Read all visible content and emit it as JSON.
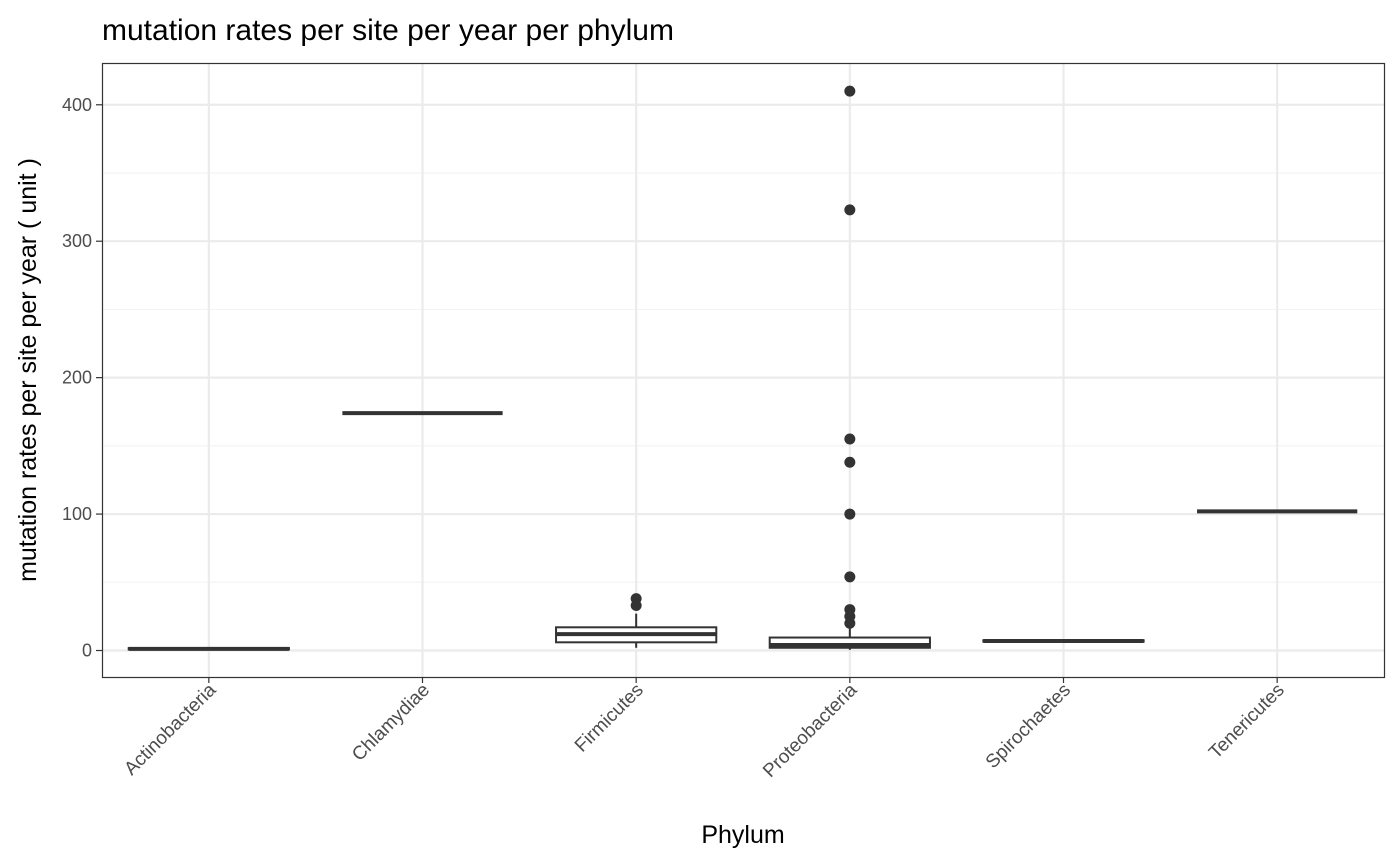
{
  "chart_data": {
    "type": "boxplot",
    "title": "mutation rates per site per year per phylum",
    "xlabel": "Phylum",
    "ylabel": "mutation rates per site per year ( unit )",
    "ylim": [
      -20,
      430
    ],
    "yticks": [
      0,
      100,
      200,
      300,
      400
    ],
    "grid": true,
    "legend": "none",
    "categories": [
      "Actinobacteria",
      "Chlamydiae",
      "Firmicutes",
      "Proteobacteria",
      "Spirochaetes",
      "Tenericutes"
    ],
    "boxes": [
      {
        "category": "Actinobacteria",
        "min": 0.5,
        "q1": 0.8,
        "median": 1.2,
        "q3": 1.8,
        "max": 2.5,
        "outliers": []
      },
      {
        "category": "Chlamydiae",
        "min": 174,
        "q1": 174,
        "median": 174,
        "q3": 174,
        "max": 174,
        "outliers": []
      },
      {
        "category": "Firmicutes",
        "min": 2,
        "q1": 6,
        "median": 12,
        "q3": 17,
        "max": 27,
        "outliers": [
          33,
          38
        ]
      },
      {
        "category": "Proteobacteria",
        "min": 0.5,
        "q1": 2,
        "median": 4,
        "q3": 9.5,
        "max": 17,
        "outliers": [
          20,
          25,
          30,
          54,
          100,
          138,
          155,
          323,
          410
        ]
      },
      {
        "category": "Spirochaetes",
        "min": 6.5,
        "q1": 6.5,
        "median": 7,
        "q3": 7.5,
        "max": 7.5,
        "outliers": []
      },
      {
        "category": "Tenericutes",
        "min": 102,
        "q1": 102,
        "median": 102,
        "q3": 102,
        "max": 102,
        "outliers": []
      }
    ],
    "colors": {
      "panel_border": "#333333",
      "grid_major": "#ebebeb",
      "grid_minor": "#f4f4f4",
      "box_line": "#333333",
      "box_fill": "#ffffff",
      "outlier": "#333333"
    }
  }
}
